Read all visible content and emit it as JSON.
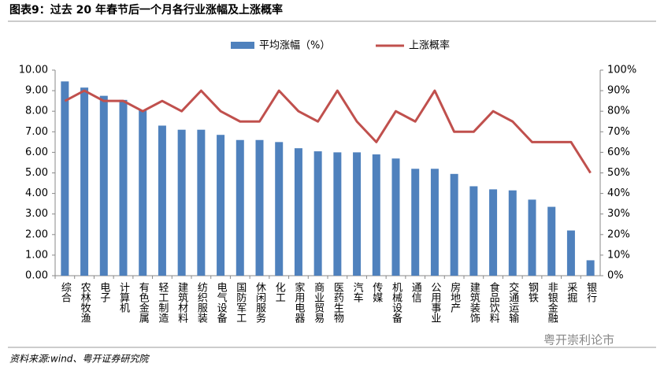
{
  "chart_data": {
    "type": "combo",
    "title": "图表9：过去 20 年春节后一个月各行业涨幅及上涨概率",
    "source": "资料来源:wind、粤开证券研究院",
    "watermark": "粤开崇利论市",
    "categories": [
      "综合",
      "农林牧渔",
      "电子",
      "计算机",
      "有色金属",
      "轻工制造",
      "建筑材料",
      "纺织服装",
      "电气设备",
      "国防军工",
      "休闲服务",
      "化工",
      "家用电器",
      "商业贸易",
      "医药生物",
      "汽车",
      "传媒",
      "机械设备",
      "通信",
      "公用事业",
      "房地产",
      "建筑装饰",
      "食品饮料",
      "交通运输",
      "钢铁",
      "非银金融",
      "采掘",
      "银行"
    ],
    "series": [
      {
        "name": "平均涨幅（%）",
        "type": "bar",
        "color": "#4f81bd",
        "values": [
          9.45,
          9.15,
          8.75,
          8.55,
          8.05,
          7.3,
          7.1,
          7.1,
          6.85,
          6.6,
          6.6,
          6.5,
          6.2,
          6.05,
          6.0,
          6.0,
          5.9,
          5.7,
          5.2,
          5.2,
          4.95,
          4.35,
          4.2,
          4.15,
          3.7,
          3.35,
          2.2,
          0.75
        ]
      },
      {
        "name": "上涨概率",
        "type": "line",
        "axis": "y2",
        "color": "#c0504d",
        "values": [
          85,
          90,
          85,
          85,
          80,
          85,
          80,
          90,
          80,
          75,
          75,
          90,
          80,
          75,
          90,
          75,
          65,
          80,
          75,
          90,
          70,
          70,
          80,
          75,
          65,
          65,
          65,
          50
        ]
      }
    ],
    "ylim": [
      0,
      10
    ],
    "yticks": [
      {
        "value": 0,
        "label": "0.00"
      },
      {
        "value": 1,
        "label": "1.00"
      },
      {
        "value": 2,
        "label": "2.00"
      },
      {
        "value": 3,
        "label": "3.00"
      },
      {
        "value": 4,
        "label": "4.00"
      },
      {
        "value": 5,
        "label": "5.00"
      },
      {
        "value": 6,
        "label": "6.00"
      },
      {
        "value": 7,
        "label": "7.00"
      },
      {
        "value": 8,
        "label": "8.00"
      },
      {
        "value": 9,
        "label": "9.00"
      },
      {
        "value": 10,
        "label": "10.00"
      }
    ],
    "y2lim": [
      0,
      100
    ],
    "y2ticks": [
      {
        "value": 0,
        "label": "0%"
      },
      {
        "value": 10,
        "label": "10%"
      },
      {
        "value": 20,
        "label": "20%"
      },
      {
        "value": 30,
        "label": "30%"
      },
      {
        "value": 40,
        "label": "40%"
      },
      {
        "value": 50,
        "label": "50%"
      },
      {
        "value": 60,
        "label": "60%"
      },
      {
        "value": 70,
        "label": "70%"
      },
      {
        "value": 80,
        "label": "80%"
      },
      {
        "value": 90,
        "label": "90%"
      },
      {
        "value": 100,
        "label": "100%"
      }
    ],
    "legend": "top"
  }
}
